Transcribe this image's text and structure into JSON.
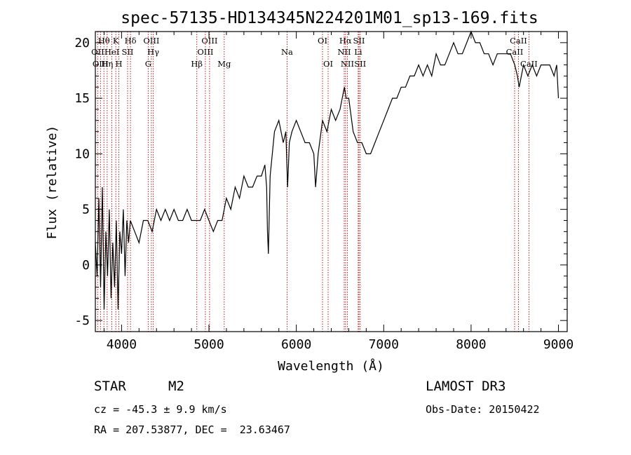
{
  "chart_data": {
    "type": "line",
    "title": "spec-57135-HD134345N224201M01_sp13-169.fits",
    "xlabel": "Wavelength (Å)",
    "ylabel": "Flux (relative)",
    "xlim": [
      3700,
      9100
    ],
    "ylim": [
      -6,
      21
    ],
    "xticks": [
      4000,
      5000,
      6000,
      7000,
      8000,
      9000
    ],
    "yticks": [
      -5,
      0,
      5,
      10,
      15,
      20
    ],
    "series": [
      {
        "name": "flux",
        "x": [
          3700,
          3720,
          3740,
          3760,
          3780,
          3800,
          3820,
          3840,
          3860,
          3880,
          3900,
          3920,
          3940,
          3960,
          3980,
          4000,
          4020,
          4040,
          4060,
          4080,
          4100,
          4150,
          4200,
          4250,
          4300,
          4350,
          4400,
          4450,
          4500,
          4550,
          4600,
          4650,
          4700,
          4750,
          4800,
          4850,
          4900,
          4950,
          5000,
          5050,
          5100,
          5150,
          5200,
          5250,
          5300,
          5350,
          5400,
          5450,
          5500,
          5550,
          5600,
          5640,
          5660,
          5670,
          5680,
          5700,
          5750,
          5800,
          5850,
          5880,
          5900,
          5920,
          5950,
          6000,
          6050,
          6100,
          6150,
          6200,
          6220,
          6250,
          6300,
          6350,
          6400,
          6450,
          6500,
          6550,
          6570,
          6600,
          6650,
          6700,
          6750,
          6800,
          6850,
          6900,
          6950,
          7000,
          7050,
          7100,
          7150,
          7200,
          7250,
          7300,
          7350,
          7400,
          7450,
          7500,
          7550,
          7600,
          7650,
          7700,
          7750,
          7800,
          7850,
          7900,
          7950,
          8000,
          8050,
          8100,
          8150,
          8200,
          8250,
          8300,
          8350,
          8400,
          8450,
          8500,
          8530,
          8550,
          8600,
          8650,
          8700,
          8750,
          8800,
          8850,
          8900,
          8950,
          8980,
          9000
        ],
        "y": [
          2,
          -1,
          6,
          -2,
          7,
          -4,
          3,
          -1,
          5,
          -3,
          2,
          -2,
          4,
          -4,
          3,
          1,
          5,
          -1,
          4,
          2,
          4,
          3,
          2,
          4,
          4,
          3,
          5,
          4,
          5,
          4,
          5,
          4,
          4,
          5,
          4,
          4,
          4,
          5,
          4,
          3,
          4,
          4,
          6,
          5,
          7,
          6,
          8,
          7,
          7,
          8,
          8,
          9,
          7,
          3,
          1,
          8,
          12,
          13,
          11,
          12,
          7,
          11,
          12,
          13,
          12,
          11,
          11,
          10,
          7,
          10,
          13,
          12,
          14,
          13,
          14,
          16,
          15,
          15,
          12,
          11,
          11,
          10,
          10,
          11,
          12,
          13,
          14,
          15,
          15,
          16,
          16,
          17,
          17,
          18,
          17,
          18,
          17,
          19,
          18,
          18,
          19,
          20,
          19,
          19,
          20,
          21,
          20,
          20,
          19,
          19,
          18,
          19,
          19,
          19,
          19,
          18,
          17,
          16,
          18,
          17,
          18,
          17,
          18,
          18,
          18,
          17,
          18,
          15
        ]
      }
    ],
    "lines": [
      {
        "label": "Hθ",
        "wl": 3798,
        "row": 0
      },
      {
        "label": "OII",
        "wl": 3727,
        "row": 1
      },
      {
        "label": "OIII",
        "wl": 3759,
        "row": 2
      },
      {
        "label": "Hη",
        "wl": 3835,
        "row": 2
      },
      {
        "label": "HeI",
        "wl": 3889,
        "row": 1
      },
      {
        "label": "K",
        "wl": 3934,
        "row": 0
      },
      {
        "label": "H",
        "wl": 3969,
        "row": 2
      },
      {
        "label": "SII",
        "wl": 4069,
        "row": 1
      },
      {
        "label": "Hδ",
        "wl": 4102,
        "row": 0
      },
      {
        "label": "G",
        "wl": 4305,
        "row": 2
      },
      {
        "label": "OIII",
        "wl": 4341,
        "row": 0
      },
      {
        "label": "Hγ",
        "wl": 4363,
        "row": 1
      },
      {
        "label": "Hβ",
        "wl": 4861,
        "row": 2
      },
      {
        "label": "OIII",
        "wl": 4959,
        "row": 1
      },
      {
        "label": "OIII",
        "wl": 5007,
        "row": 0
      },
      {
        "label": "Mg",
        "wl": 5175,
        "row": 2
      },
      {
        "label": "Na",
        "wl": 5894,
        "row": 1
      },
      {
        "label": "OI",
        "wl": 6300,
        "row": 0
      },
      {
        "label": "OI",
        "wl": 6364,
        "row": 2
      },
      {
        "label": "NII",
        "wl": 6548,
        "row": 1
      },
      {
        "label": "Hα",
        "wl": 6563,
        "row": 0
      },
      {
        "label": "NII",
        "wl": 6584,
        "row": 2
      },
      {
        "label": "SII",
        "wl": 6717,
        "row": 0
      },
      {
        "label": "Li",
        "wl": 6708,
        "row": 1
      },
      {
        "label": "SII",
        "wl": 6731,
        "row": 2
      },
      {
        "label": "CaII",
        "wl": 8498,
        "row": 1
      },
      {
        "label": "CaII",
        "wl": 8542,
        "row": 0
      },
      {
        "label": "CaII",
        "wl": 8662,
        "row": 2
      }
    ]
  },
  "info": {
    "class": "STAR",
    "subclass": "M2",
    "survey": "LAMOST DR3",
    "cz": "cz = -45.3 ± 9.9 km/s",
    "obsdate": "Obs-Date: 20150422",
    "radec": "RA = 207.53877, DEC =  23.63467"
  }
}
